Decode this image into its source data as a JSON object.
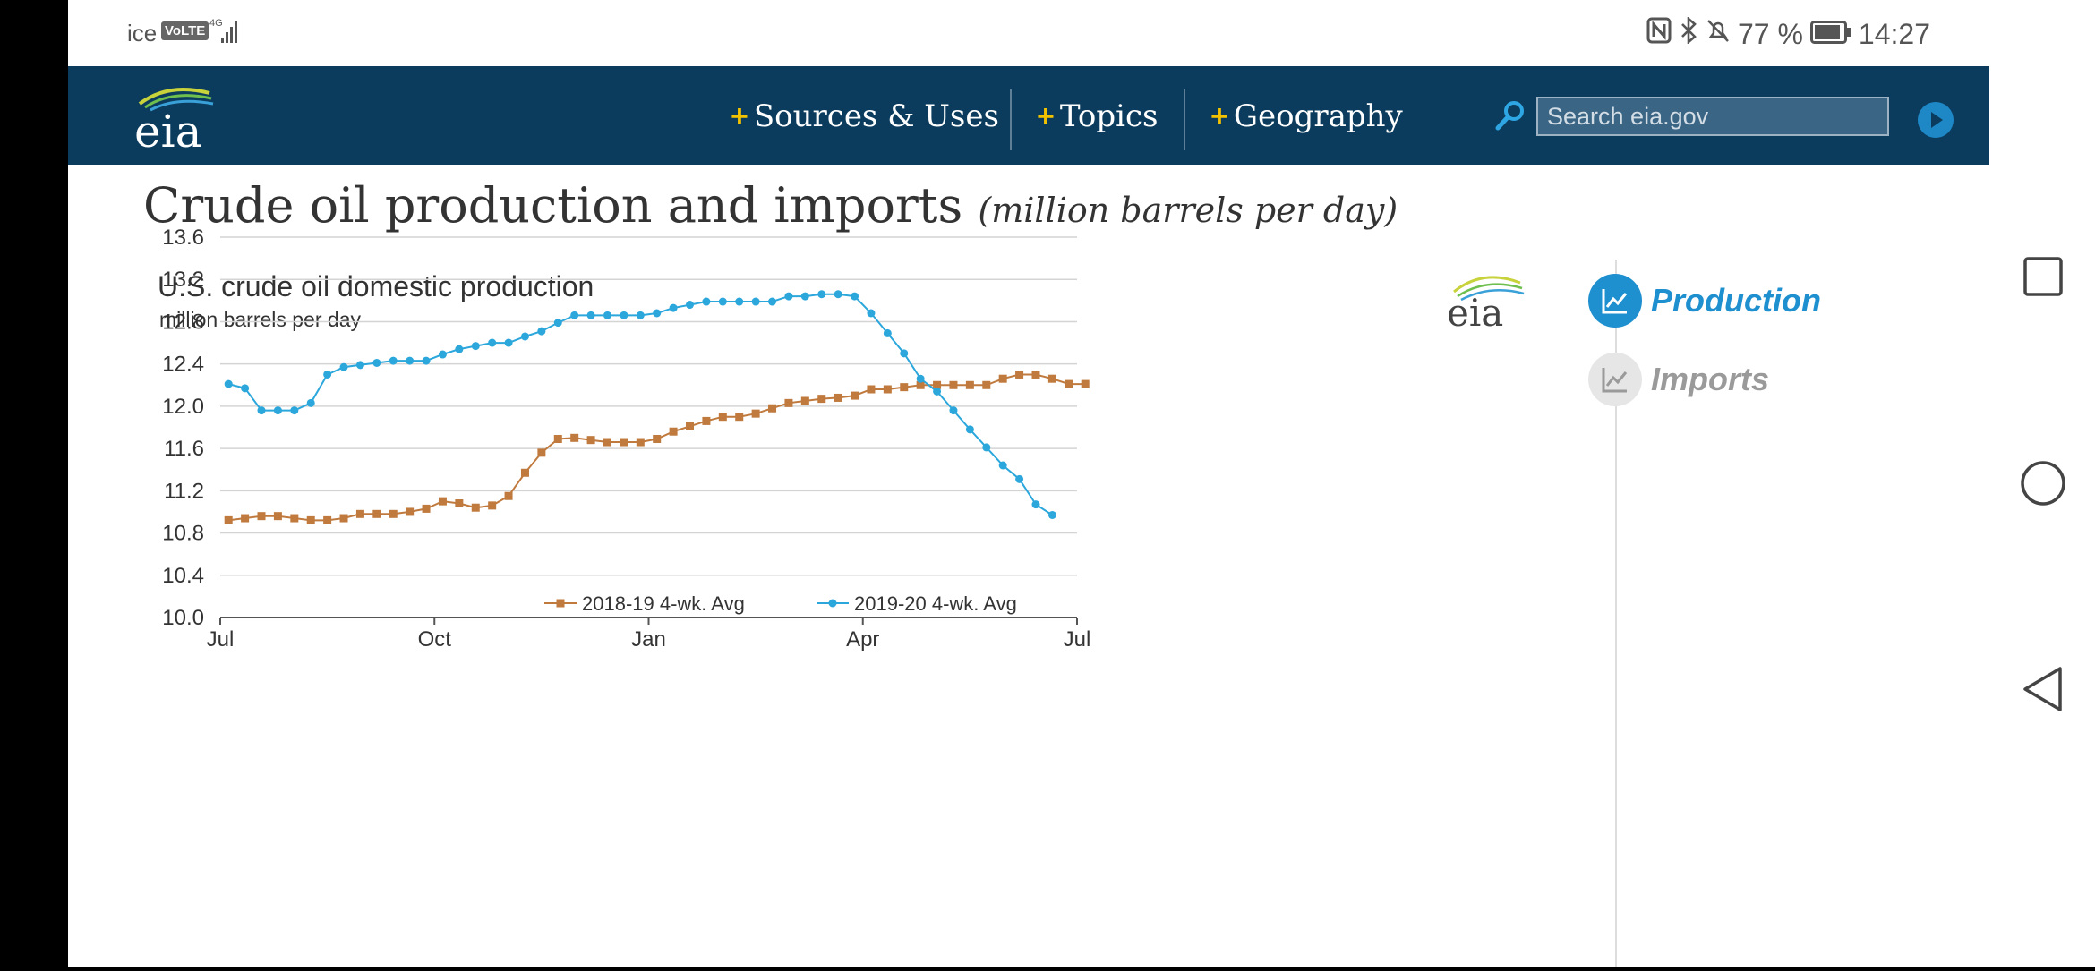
{
  "status_bar": {
    "carrier": "ice",
    "volte": "VoLTE",
    "network": "4G",
    "battery": "77 %",
    "time": "14:27"
  },
  "header": {
    "logo_text": "eia",
    "nav": [
      "Sources & Uses",
      "Topics",
      "Geography"
    ],
    "search_placeholder": "Search eia.gov"
  },
  "page": {
    "title": "Crude oil production and imports",
    "title_unit": "(million barrels per day)"
  },
  "toggles": [
    {
      "label": "Production",
      "active": true
    },
    {
      "label": "Imports",
      "active": false
    }
  ],
  "colors": {
    "header_bg": "#0b3c5d",
    "series_2018": "#c07a3e",
    "series_2019": "#2ba7dc",
    "active_toggle": "#1e8fcf"
  },
  "chart_data": {
    "type": "line",
    "title": "U.S. crude oil domestic production",
    "subtitle": "million barrels per day",
    "logo": "eia",
    "ylim": [
      10.0,
      13.6
    ],
    "yticks": [
      "13.6",
      "13.2",
      "12.8",
      "12.4",
      "12.0",
      "11.6",
      "11.2",
      "10.8",
      "10.4",
      "10.0"
    ],
    "x_ticks": [
      "Jul",
      "Oct",
      "Jan",
      "Apr",
      "Jul"
    ],
    "x_range_weeks": 52,
    "legend_position": "bottom",
    "grid": true,
    "series": [
      {
        "name": "2018-19  4-wk. Avg",
        "marker": "square",
        "color": "#c07a3e",
        "start_week": 0.5,
        "values": [
          10.92,
          10.94,
          10.96,
          10.96,
          10.94,
          10.92,
          10.92,
          10.94,
          10.98,
          10.98,
          10.98,
          11.0,
          11.03,
          11.1,
          11.08,
          11.04,
          11.06,
          11.15,
          11.37,
          11.56,
          11.69,
          11.7,
          11.68,
          11.66,
          11.66,
          11.66,
          11.69,
          11.76,
          11.81,
          11.86,
          11.9,
          11.9,
          11.93,
          11.98,
          12.03,
          12.05,
          12.07,
          12.08,
          12.1,
          12.16,
          12.16,
          12.18,
          12.2,
          12.2,
          12.2,
          12.2,
          12.2,
          12.26,
          12.3,
          12.3,
          12.26,
          12.21,
          12.21
        ]
      },
      {
        "name": "2019-20  4-wk. Avg",
        "marker": "circle",
        "color": "#2ba7dc",
        "start_week": 0.5,
        "values": [
          12.21,
          12.17,
          11.96,
          11.96,
          11.96,
          12.03,
          12.3,
          12.37,
          12.39,
          12.41,
          12.43,
          12.43,
          12.43,
          12.49,
          12.54,
          12.57,
          12.6,
          12.6,
          12.66,
          12.71,
          12.79,
          12.86,
          12.86,
          12.86,
          12.86,
          12.86,
          12.88,
          12.93,
          12.96,
          12.99,
          12.99,
          12.99,
          12.99,
          12.99,
          13.04,
          13.04,
          13.06,
          13.06,
          13.04,
          12.88,
          12.69,
          12.5,
          12.26,
          12.14,
          11.96,
          11.78,
          11.61,
          11.44,
          11.31,
          11.07,
          10.97
        ]
      }
    ]
  },
  "android_nav": [
    "recent-apps",
    "home",
    "back"
  ]
}
